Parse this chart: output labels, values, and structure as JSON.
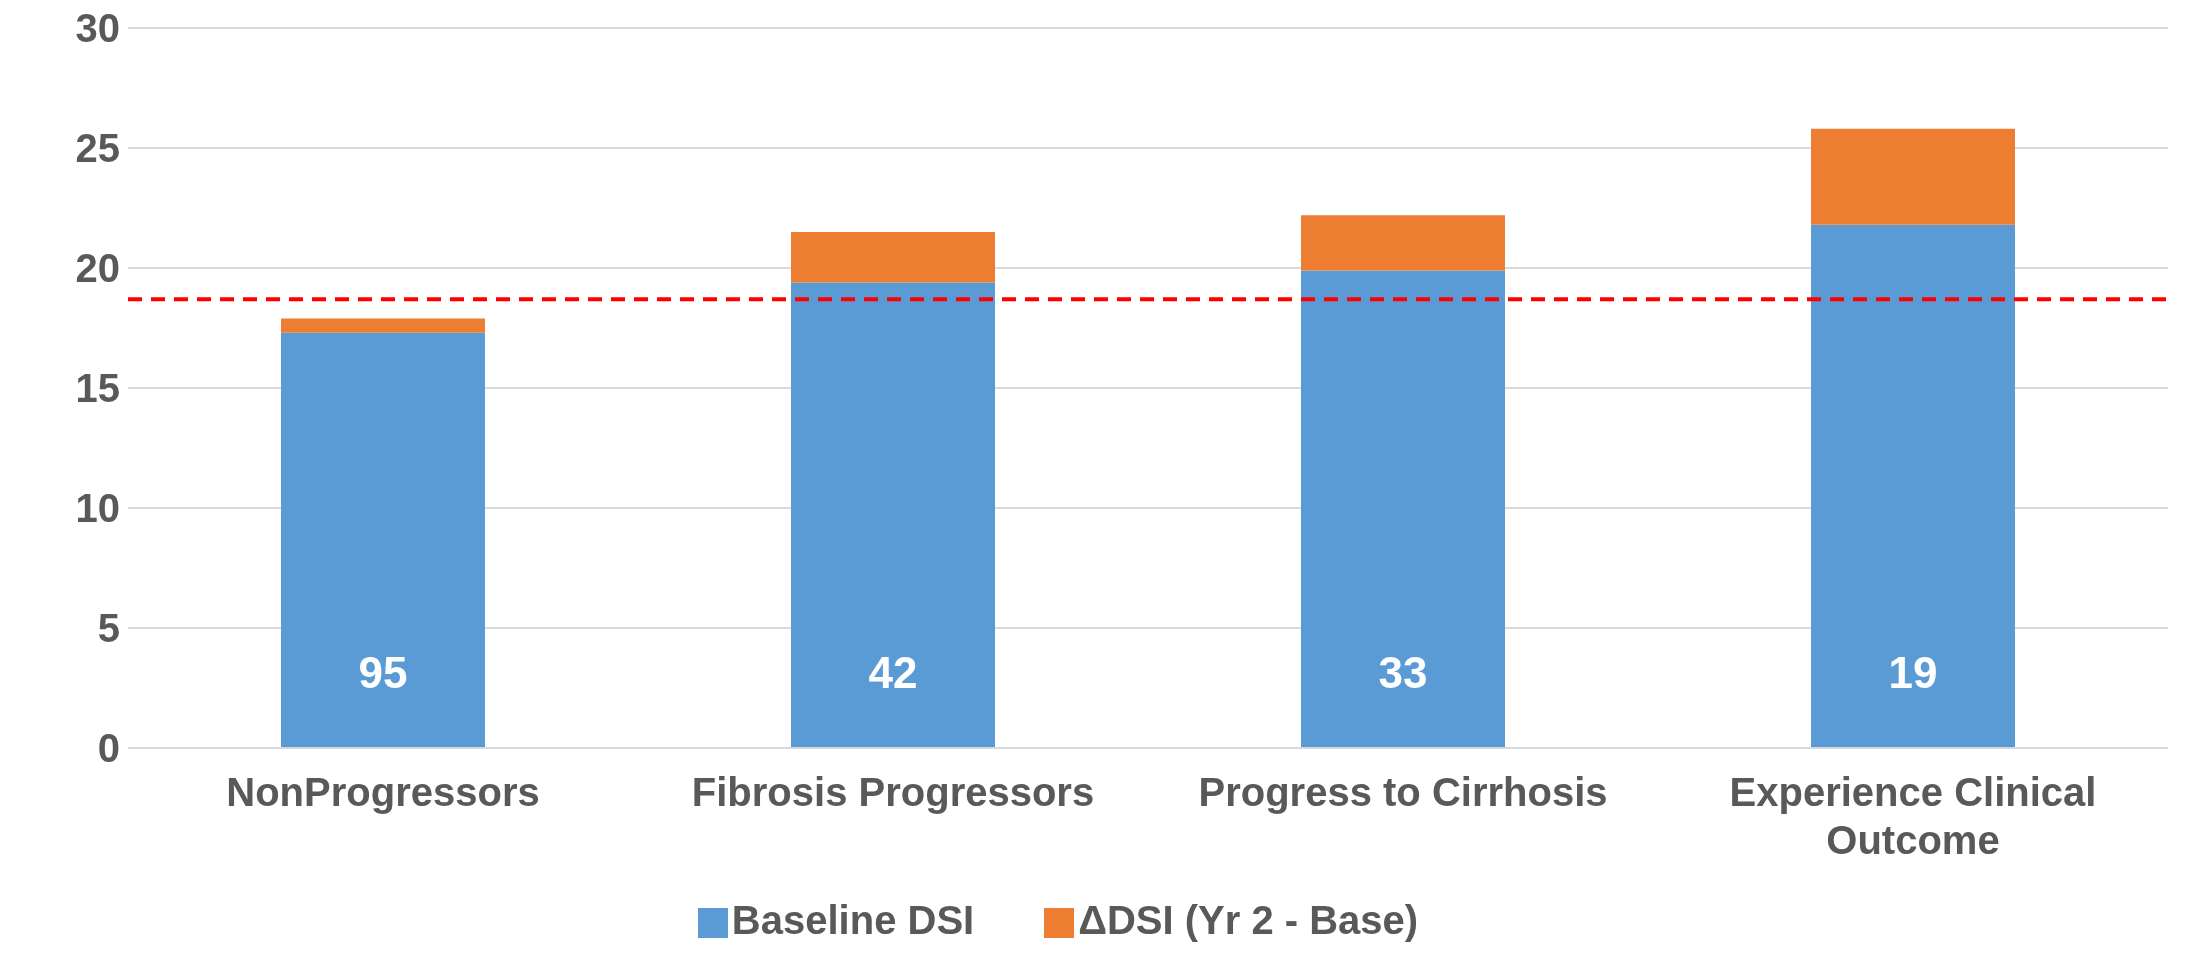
{
  "chart_data": {
    "type": "bar",
    "stacked": true,
    "categories": [
      "NonProgressors",
      "Fibrosis Progressors",
      "Progress to Cirrhosis",
      "Experience Clinical Outcome"
    ],
    "series": [
      {
        "name": "Baseline DSI",
        "color": "#5b9bd5",
        "values": [
          17.3,
          19.4,
          19.9,
          21.8
        ]
      },
      {
        "name": "ΔDSI (Yr 2 - Base)",
        "color": "#ed7d31",
        "values": [
          0.6,
          2.1,
          2.3,
          4.0
        ]
      }
    ],
    "ylim": [
      0,
      30
    ],
    "yticks": [
      0,
      5,
      10,
      15,
      20,
      25,
      30
    ],
    "grid": "y",
    "legend": "bottom",
    "ref_lines": [
      {
        "axis": "y",
        "value": 18.7,
        "color": "#ff0000",
        "line_style": "dashed"
      }
    ],
    "annotations": [
      "95",
      "42",
      "33",
      "19"
    ]
  }
}
